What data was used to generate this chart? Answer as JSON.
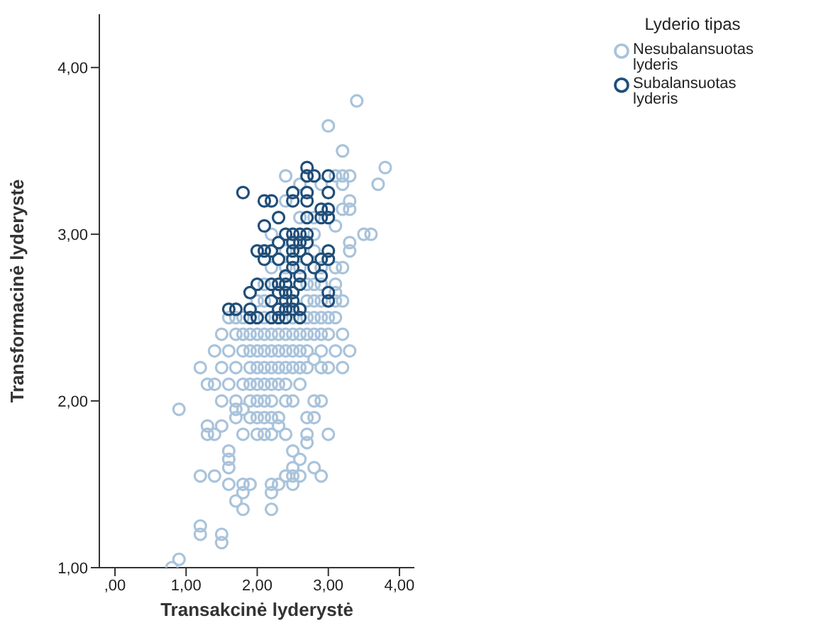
{
  "chart_data": {
    "type": "scatter",
    "xlabel": "Transakcinė lyderystė",
    "ylabel": "Transformacinė lyderystė",
    "legend_title": "Lyderio tipas",
    "legend": "top right",
    "grid": false,
    "marker": "circle",
    "xlim": [
      -0.22,
      4.21
    ],
    "xticks": [
      {
        "value": 0,
        "label": ",00"
      },
      {
        "value": 1,
        "label": "1,00"
      },
      {
        "value": 2,
        "label": "2,00"
      },
      {
        "value": 3,
        "label": "3,00"
      },
      {
        "value": 4,
        "label": "4,00"
      }
    ],
    "ylim": [
      1,
      4.32
    ],
    "yticks": [
      {
        "value": 1,
        "label": "1,00"
      },
      {
        "value": 2,
        "label": "2,00"
      },
      {
        "value": 3,
        "label": "3,00"
      },
      {
        "value": 4,
        "label": "4,00"
      }
    ],
    "series": [
      {
        "name": "Nesubalansuotas lyderis",
        "color": "#a9c3db",
        "x": [
          3.4,
          3.0,
          3.2,
          3.8,
          3.7,
          2.4,
          3.1,
          3.2,
          3.3,
          2.6,
          2.9,
          3.2,
          2.4,
          3.3,
          3.2,
          3.3,
          3.1,
          3.5,
          3.6,
          3.3,
          3.3,
          3.2,
          3.1,
          3.2,
          1.2,
          1.3,
          1.4,
          0.9,
          1.3,
          1.5,
          1.3,
          1.4,
          1.6,
          1.6,
          1.6,
          1.2,
          1.4,
          1.6,
          1.8,
          1.9,
          1.8,
          1.7,
          1.8,
          1.2,
          1.2,
          1.5,
          1.5,
          0.9,
          0.8,
          1.7,
          1.8,
          3.3,
          3.2,
          3.0,
          2.8,
          2.8,
          2.9,
          2.7,
          2.8,
          2.3,
          2.7,
          2.7,
          3.0,
          2.5,
          2.6,
          2.8,
          2.9,
          2.5,
          2.5,
          2.5,
          2.4,
          2.6,
          2.3,
          2.2,
          2.2,
          2.2,
          1.6,
          1.7,
          1.8,
          2.1,
          2.5,
          2.7,
          2.8,
          2.9,
          3.0,
          3.1,
          1.5,
          1.7,
          1.8,
          1.9,
          2.0,
          2.1,
          2.2,
          2.3,
          2.4,
          2.5,
          2.6,
          2.7,
          2.8,
          2.9,
          3.0,
          3.2,
          1.4,
          1.6,
          1.8,
          1.9,
          2.0,
          2.1,
          2.2,
          2.3,
          2.4,
          2.5,
          2.6,
          2.7,
          2.9,
          3.1,
          1.5,
          1.7,
          1.9,
          2.0,
          2.1,
          2.2,
          2.3,
          2.4,
          2.5,
          2.6,
          2.7,
          2.9,
          1.6,
          1.8,
          1.9,
          2.0,
          2.1,
          2.2,
          2.3,
          2.4,
          2.6,
          1.5,
          1.7,
          1.9,
          2.0,
          2.1,
          2.2,
          2.4,
          2.5,
          1.7,
          1.9,
          2.0,
          2.1,
          2.2,
          2.3,
          1.8,
          2.0,
          2.1,
          2.2,
          2.4,
          2.0,
          2.1,
          2.7,
          2.8,
          2.9,
          3.1,
          2.1,
          2.7,
          2.8,
          2.9,
          3.1,
          2.2,
          2.4,
          2.6,
          2.9,
          3.1,
          2.4,
          2.8,
          2.2,
          2.8,
          2.6,
          2.8
        ],
        "values": [
          3.8,
          3.65,
          3.5,
          3.4,
          3.3,
          3.35,
          3.35,
          3.35,
          3.35,
          3.3,
          3.3,
          3.3,
          3.2,
          3.2,
          3.15,
          3.15,
          3.05,
          3.0,
          3.0,
          2.95,
          2.9,
          2.8,
          2.65,
          2.6,
          2.2,
          2.1,
          2.1,
          1.95,
          1.85,
          1.85,
          1.8,
          1.8,
          1.7,
          1.65,
          1.6,
          1.55,
          1.55,
          1.5,
          1.5,
          1.5,
          1.45,
          1.4,
          1.35,
          1.25,
          1.2,
          1.2,
          1.15,
          1.05,
          1.0,
          1.95,
          1.95,
          2.3,
          2.2,
          2.2,
          2.25,
          2.0,
          2.0,
          1.9,
          1.9,
          1.85,
          1.8,
          1.75,
          1.8,
          1.7,
          1.65,
          1.6,
          1.55,
          1.6,
          1.55,
          1.5,
          1.55,
          1.55,
          1.5,
          1.5,
          1.45,
          1.35,
          2.5,
          2.5,
          2.5,
          2.5,
          2.5,
          2.5,
          2.5,
          2.5,
          2.5,
          2.5,
          2.4,
          2.4,
          2.4,
          2.4,
          2.4,
          2.4,
          2.4,
          2.4,
          2.4,
          2.4,
          2.4,
          2.4,
          2.4,
          2.4,
          2.4,
          2.4,
          2.3,
          2.3,
          2.3,
          2.3,
          2.3,
          2.3,
          2.3,
          2.3,
          2.3,
          2.3,
          2.3,
          2.3,
          2.3,
          2.3,
          2.2,
          2.2,
          2.2,
          2.2,
          2.2,
          2.2,
          2.2,
          2.2,
          2.2,
          2.2,
          2.2,
          2.2,
          2.1,
          2.1,
          2.1,
          2.1,
          2.1,
          2.1,
          2.1,
          2.1,
          2.1,
          2.0,
          2.0,
          2.0,
          2.0,
          2.0,
          2.0,
          2.0,
          2.0,
          1.9,
          1.9,
          1.9,
          1.9,
          1.9,
          1.9,
          1.8,
          1.8,
          1.8,
          1.8,
          1.8,
          2.6,
          2.6,
          2.6,
          2.6,
          2.6,
          2.6,
          2.7,
          2.7,
          2.7,
          2.7,
          2.7,
          2.8,
          2.8,
          2.8,
          2.8,
          2.8,
          2.9,
          2.9,
          3.0,
          3.0,
          3.1,
          3.1
        ]
      },
      {
        "name": "Subalansuotas lyderis",
        "color": "#1f4e79",
        "x": [
          1.8,
          2.1,
          2.2,
          2.3,
          2.1,
          2.0,
          2.1,
          2.2,
          2.3,
          2.1,
          2.3,
          2.0,
          1.9,
          2.2,
          2.3,
          2.2,
          1.6,
          1.7,
          1.9,
          1.9,
          2.0,
          2.2,
          2.3,
          2.3,
          2.7,
          2.7,
          2.8,
          3.0,
          2.5,
          2.7,
          3.0,
          2.5,
          2.7,
          2.9,
          3.0,
          2.9,
          3.0,
          2.7,
          2.4,
          2.5,
          2.6,
          2.7,
          2.5,
          2.6,
          2.7,
          2.5,
          2.6,
          3.0,
          2.5,
          2.7,
          2.9,
          3.0,
          2.5,
          2.8,
          2.4,
          2.6,
          2.9,
          2.3,
          2.4,
          2.6,
          2.4,
          2.5,
          3.0,
          2.4,
          2.5,
          3.0,
          2.4,
          2.5,
          2.6,
          2.4,
          2.6
        ],
        "values": [
          3.25,
          3.2,
          3.2,
          3.1,
          3.05,
          2.9,
          2.9,
          2.9,
          2.95,
          2.85,
          2.85,
          2.7,
          2.65,
          2.7,
          2.65,
          2.6,
          2.55,
          2.55,
          2.55,
          2.5,
          2.5,
          2.5,
          2.5,
          2.55,
          3.4,
          3.35,
          3.35,
          3.35,
          3.25,
          3.25,
          3.25,
          3.2,
          3.2,
          3.15,
          3.15,
          3.1,
          3.1,
          3.1,
          3.0,
          3.0,
          3.0,
          3.0,
          2.95,
          2.95,
          2.95,
          2.9,
          2.9,
          2.9,
          2.85,
          2.85,
          2.85,
          2.85,
          2.8,
          2.8,
          2.75,
          2.75,
          2.75,
          2.7,
          2.7,
          2.7,
          2.65,
          2.65,
          2.65,
          2.6,
          2.6,
          2.6,
          2.55,
          2.55,
          2.55,
          2.5,
          2.5
        ]
      }
    ]
  }
}
